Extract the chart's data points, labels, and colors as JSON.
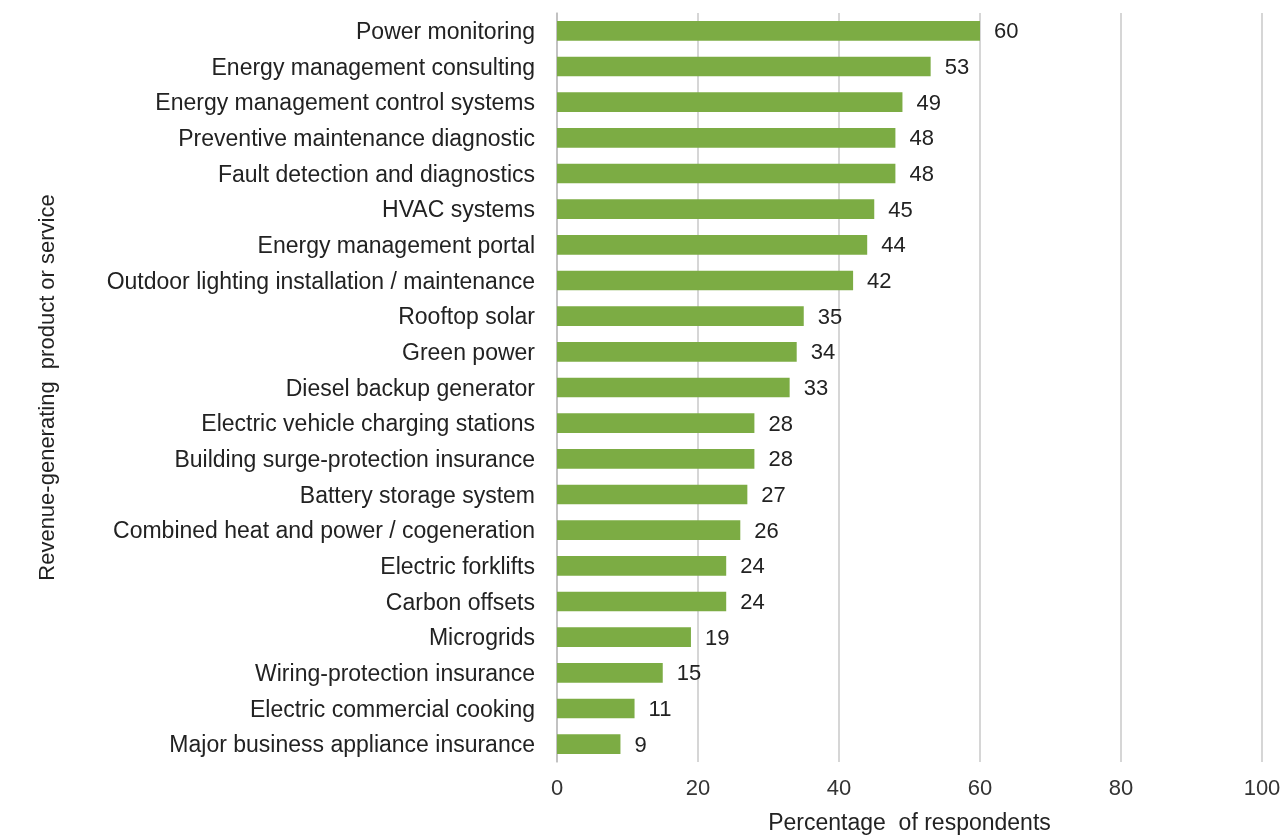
{
  "chart_data": {
    "type": "bar",
    "orientation": "horizontal",
    "xlabel": "Percentage  of respondents",
    "ylabel": "Revenue-generating  product or service",
    "categories": [
      "Power monitoring",
      "Energy management consulting",
      "Energy management control systems",
      "Preventive maintenance diagnostic",
      "Fault detection and diagnostics",
      "HVAC systems",
      "Energy management portal",
      "Outdoor lighting installation / maintenance",
      "Rooftop solar",
      "Green power",
      "Diesel backup generator",
      "Electric vehicle charging stations",
      "Building surge-protection insurance",
      "Battery storage system",
      "Combined heat and power / cogeneration",
      "Electric forklifts",
      "Carbon offsets",
      "Microgrids",
      "Wiring-protection insurance",
      "Electric commercial cooking",
      "Major business appliance insurance"
    ],
    "values": [
      60,
      53,
      49,
      48,
      48,
      45,
      44,
      42,
      35,
      34,
      33,
      28,
      28,
      27,
      26,
      24,
      24,
      19,
      15,
      11,
      9
    ],
    "color": "#7cac44",
    "xlim": [
      0,
      100
    ],
    "xticks": [
      0,
      20,
      40,
      60,
      80,
      100
    ],
    "grid": "x",
    "data_labels": true
  }
}
